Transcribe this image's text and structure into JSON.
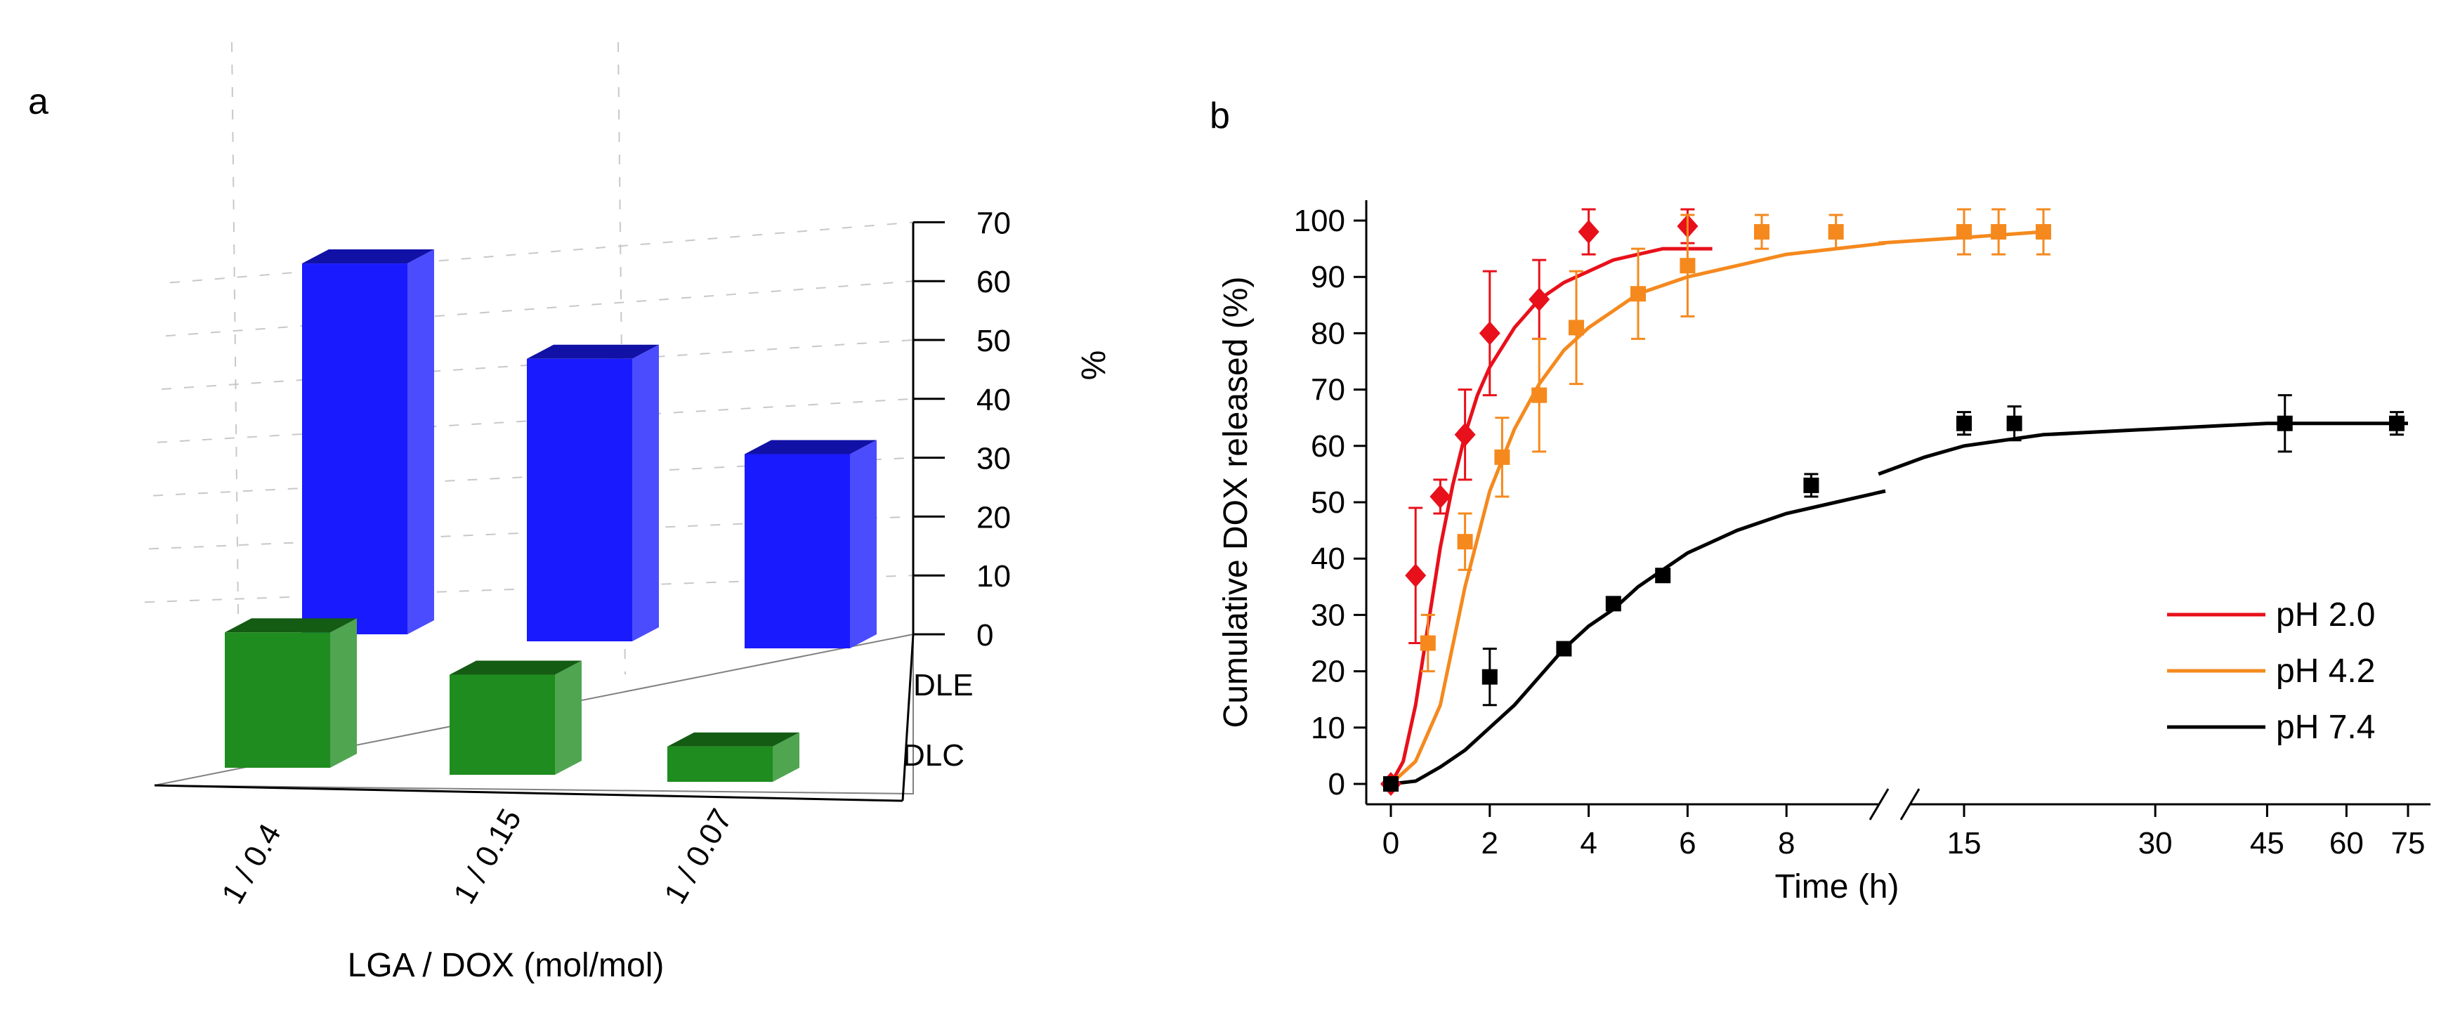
{
  "chart_data": [
    {
      "panel": "a",
      "type": "bar",
      "variant": "3d-bar",
      "categories": [
        "1 / 0.4",
        "1 / 0.15",
        "1 / 0.07"
      ],
      "series": [
        {
          "name": "DLE",
          "values": [
            63,
            48,
            33
          ],
          "color": "#1a1aff"
        },
        {
          "name": "DLC",
          "values": [
            23,
            17,
            6
          ],
          "color": "#1e8c1e"
        }
      ],
      "xlabel": "LGA / DOX (mol/mol)",
      "ylabel": "%",
      "ylim": [
        0,
        70
      ],
      "yticks": [
        0,
        10,
        20,
        30,
        40,
        50,
        60,
        70
      ],
      "depth_labels": [
        "DLE",
        "DLC"
      ],
      "grid": true
    },
    {
      "panel": "b",
      "type": "scatter",
      "xlabel": "Time (h)",
      "ylabel": "Cumulative DOX released (%)",
      "ylim": [
        0,
        100
      ],
      "yticks": [
        0,
        10,
        20,
        30,
        40,
        50,
        60,
        70,
        80,
        90,
        100
      ],
      "xticks_left": [
        0,
        2,
        4,
        6,
        8
      ],
      "xticks_right": [
        15,
        30,
        45,
        60,
        75
      ],
      "xbreak": [
        10,
        11
      ],
      "legend_position": "bottom-right",
      "series": [
        {
          "name": "pH 2.0",
          "color": "#e8101a",
          "marker": "diamond",
          "x": [
            0,
            0.5,
            1.0,
            1.5,
            2.0,
            3.0,
            4.0,
            6.0
          ],
          "y": [
            0,
            37,
            51,
            62,
            80,
            86,
            98,
            99
          ],
          "err": [
            0,
            12,
            3,
            8,
            11,
            7,
            4,
            3
          ],
          "fit_x": [
            0,
            0.25,
            0.5,
            0.75,
            1.0,
            1.25,
            1.5,
            1.75,
            2.0,
            2.5,
            3.0,
            3.5,
            4.0,
            4.5,
            5.0,
            5.5,
            6.0,
            6.5
          ],
          "fit_y": [
            0,
            4,
            14,
            28,
            42,
            53,
            62,
            69,
            74,
            81,
            86,
            89,
            91,
            93,
            94,
            95,
            95,
            95
          ]
        },
        {
          "name": "pH 4.2",
          "color": "#f5891e",
          "marker": "square",
          "x": [
            0,
            0.75,
            1.5,
            2.25,
            3.0,
            3.75,
            5.0,
            6.0,
            7.5,
            9.0,
            15,
            17,
            20
          ],
          "y": [
            0,
            25,
            43,
            58,
            69,
            81,
            87,
            92,
            98,
            98,
            98,
            98,
            98
          ],
          "err": [
            0,
            5,
            5,
            7,
            10,
            10,
            8,
            9,
            3,
            3,
            4,
            4,
            4
          ],
          "fit_x": [
            0,
            0.5,
            1.0,
            1.5,
            2.0,
            2.5,
            3.0,
            3.5,
            4.0,
            5.0,
            6.0,
            7.0,
            8.0,
            9.0,
            10,
            11,
            15,
            20
          ],
          "fit_y": [
            0,
            4,
            14,
            35,
            52,
            63,
            71,
            77,
            81,
            87,
            90,
            92,
            94,
            95,
            96,
            96,
            97,
            98
          ]
        },
        {
          "name": "pH 7.4",
          "color": "#000000",
          "marker": "square",
          "x": [
            0,
            2.0,
            3.5,
            4.5,
            5.5,
            8.5,
            15,
            18,
            48,
            72
          ],
          "y": [
            0,
            19,
            24,
            32,
            37,
            53,
            64,
            64,
            64,
            64
          ],
          "err": [
            0,
            5,
            1,
            1,
            1,
            2,
            2,
            3,
            5,
            2
          ],
          "fit_x": [
            0,
            0.5,
            1.0,
            1.5,
            2.0,
            2.5,
            3.0,
            3.5,
            4.0,
            4.5,
            5.0,
            5.5,
            6.0,
            7.0,
            8.0,
            9.0,
            10,
            11,
            13,
            15,
            20,
            30,
            45,
            60,
            75
          ],
          "fit_y": [
            0,
            0.5,
            3,
            6,
            10,
            14,
            19,
            24,
            28,
            31,
            35,
            38,
            41,
            45,
            48,
            50,
            52,
            55,
            58,
            60,
            62,
            63,
            64,
            64,
            64
          ]
        }
      ]
    }
  ],
  "panels": {
    "a": "a",
    "b": "b"
  }
}
